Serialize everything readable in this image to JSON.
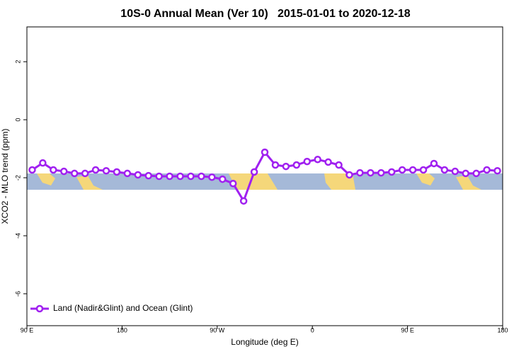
{
  "chart_data": {
    "type": "line",
    "title": "10S-0 Annual Mean (Ver 10)   2015-01-01 to 2020-12-18",
    "x_label": "Longitude (deg E)",
    "y_label": "XCO2 - MLO trend (ppm)",
    "x": [
      95,
      105,
      115,
      125,
      135,
      145,
      155,
      165,
      175,
      185,
      195,
      205,
      215,
      225,
      235,
      245,
      255,
      265,
      275,
      285,
      295,
      305,
      315,
      325,
      335,
      345,
      355,
      365,
      375,
      385,
      395,
      405,
      415,
      425,
      435,
      445,
      455,
      465,
      475,
      485,
      495,
      505,
      515,
      525,
      535
    ],
    "series": [
      {
        "name": "Land (Nadir&Glint) and Ocean (Glint)",
        "color": "#a020f0",
        "values": [
          -1.73,
          -1.49,
          -1.73,
          -1.78,
          -1.85,
          -1.85,
          -1.73,
          -1.76,
          -1.8,
          -1.85,
          -1.9,
          -1.93,
          -1.95,
          -1.95,
          -1.95,
          -1.95,
          -1.95,
          -1.98,
          -2.05,
          -2.2,
          -2.8,
          -1.8,
          -1.12,
          -1.56,
          -1.61,
          -1.56,
          -1.44,
          -1.37,
          -1.46,
          -1.56,
          -1.9,
          -1.83,
          -1.83,
          -1.83,
          -1.8,
          -1.73,
          -1.73,
          -1.73,
          -1.51,
          -1.73,
          -1.78,
          -1.85,
          -1.85,
          -1.73,
          -1.76
        ]
      }
    ],
    "xlim": [
      90,
      540
    ],
    "xticks": [
      {
        "value": 90,
        "label": "90 E"
      },
      180,
      {
        "value": 270,
        "label": "90 W"
      },
      {
        "value": 360,
        "label": "0"
      },
      {
        "value": 450,
        "label": "90 E"
      },
      {
        "value": 540,
        "label": "180"
      }
    ],
    "ylim": [
      -7.1,
      3.2
    ],
    "yticks": [
      2,
      0,
      -2,
      -4,
      -6
    ],
    "legend": "bottom-left"
  }
}
